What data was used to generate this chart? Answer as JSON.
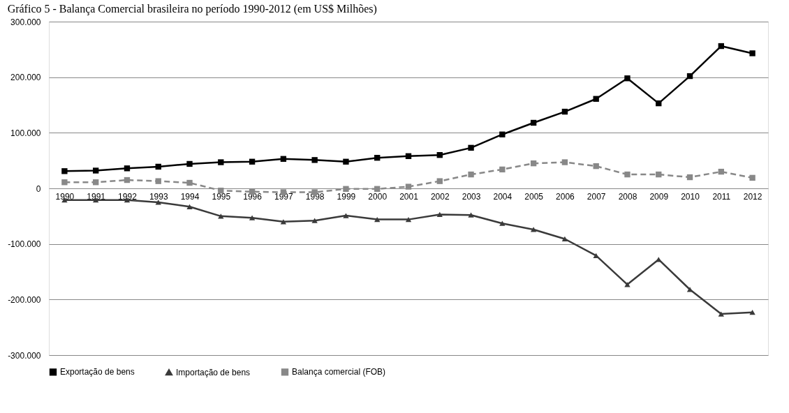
{
  "chart_data": {
    "type": "line",
    "title": "Gráfico 5 - Balança Comercial brasileira no período 1990-2012 (em US$ Milhões)",
    "categories": [
      "1990",
      "1991",
      "1992",
      "1993",
      "1994",
      "1995",
      "1996",
      "1997",
      "1998",
      "1999",
      "2000",
      "2001",
      "2002",
      "2003",
      "2004",
      "2005",
      "2006",
      "2007",
      "2008",
      "2009",
      "2010",
      "2011",
      "2012"
    ],
    "series": [
      {
        "name": "Exportação de bens",
        "color": "#000000",
        "marker": "square",
        "line_style": "solid",
        "values": [
          31000,
          32000,
          36000,
          39000,
          44000,
          47000,
          48000,
          53000,
          51000,
          48000,
          55000,
          58000,
          60000,
          73000,
          97000,
          118000,
          138000,
          161000,
          198000,
          153000,
          202000,
          256000,
          243000
        ]
      },
      {
        "name": "Importação de bens",
        "color": "#3a3a3a",
        "marker": "triangle",
        "line_style": "solid",
        "values": [
          -21000,
          -21000,
          -21000,
          -25000,
          -33000,
          -50000,
          -53000,
          -60000,
          -58000,
          -49000,
          -56000,
          -56000,
          -47000,
          -48000,
          -63000,
          -74000,
          -91000,
          -121000,
          -173000,
          -128000,
          -182000,
          -226000,
          -223000
        ]
      },
      {
        "name": "Balança comercial (FOB)",
        "color": "#888888",
        "marker": "square",
        "line_style": "dashed",
        "values": [
          11000,
          11000,
          15000,
          13000,
          10000,
          -4000,
          -6000,
          -7000,
          -7000,
          -1000,
          -1000,
          3000,
          13000,
          25000,
          34000,
          45000,
          47000,
          40000,
          25000,
          25000,
          20000,
          30000,
          19000
        ]
      }
    ],
    "ylim": [
      -300000,
      300000
    ],
    "yticks": [
      {
        "value": -300000,
        "label": "-300.000"
      },
      {
        "value": -200000,
        "label": "-200.000"
      },
      {
        "value": -100000,
        "label": "-100.000"
      },
      0,
      {
        "value": 100000,
        "label": "100.000"
      },
      {
        "value": 200000,
        "label": "200.000"
      },
      {
        "value": 300000,
        "label": "300.000"
      }
    ],
    "grid": "y",
    "legend": "bottom"
  }
}
